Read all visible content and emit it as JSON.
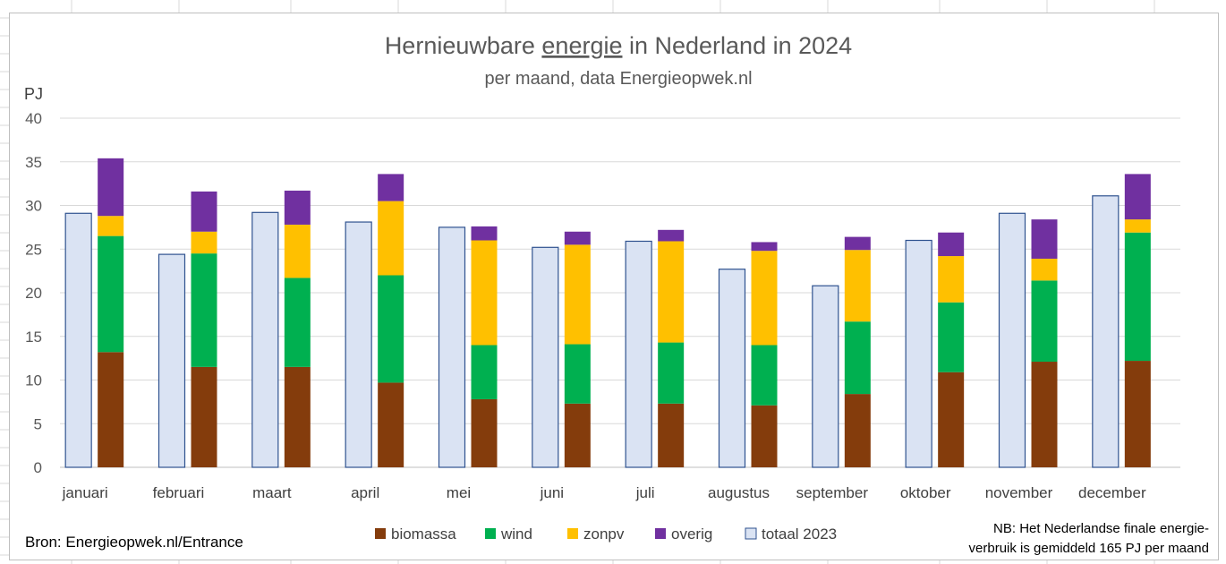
{
  "chart_data": {
    "type": "bar",
    "title_parts": [
      "Hernieuwbare ",
      "energie",
      " in Nederland in 2024"
    ],
    "subtitle": "per maand, data Energieopwek.nl",
    "ylabel": "PJ",
    "ylim": [
      0,
      40
    ],
    "yticks": [
      "0",
      "5",
      "10",
      "15",
      "20",
      "25",
      "30",
      "35",
      "40"
    ],
    "grid": true,
    "legend_position": "bottom",
    "categories": [
      "januari",
      "februari",
      "maart",
      "april",
      "mei",
      "juni",
      "juli",
      "augustus",
      "september",
      "oktober",
      "november",
      "december"
    ],
    "reference_series": {
      "name": "totaal 2023",
      "color": "#dae3f3",
      "edge_color": "#2f528f",
      "values": [
        29.1,
        24.4,
        29.2,
        28.1,
        27.5,
        25.2,
        25.9,
        22.7,
        20.8,
        26.0,
        29.1,
        31.1
      ]
    },
    "series": [
      {
        "name": "biomassa",
        "color": "#843c0c",
        "values": [
          13.2,
          11.5,
          11.5,
          9.7,
          7.8,
          7.3,
          7.3,
          7.1,
          8.4,
          10.9,
          12.1,
          12.2
        ]
      },
      {
        "name": "wind",
        "color": "#00b050",
        "values": [
          13.3,
          13.0,
          10.2,
          12.3,
          6.2,
          6.8,
          7.0,
          6.9,
          8.3,
          8.0,
          9.3,
          14.7
        ]
      },
      {
        "name": "zonpv",
        "color": "#ffc000",
        "values": [
          2.3,
          2.5,
          6.1,
          8.5,
          12.0,
          11.4,
          11.6,
          10.8,
          8.2,
          5.3,
          2.5,
          1.5
        ]
      },
      {
        "name": "overig",
        "color": "#7030a0",
        "values": [
          6.6,
          4.6,
          3.9,
          3.1,
          1.6,
          1.5,
          1.3,
          1.0,
          1.5,
          2.7,
          4.5,
          5.2
        ]
      }
    ]
  },
  "source_text": "Bron: Energieopwek.nl/Entrance",
  "note_lines": [
    "NB: Het Nederlandse finale energie-",
    "verbruik is gemiddeld 165 PJ per maand"
  ]
}
